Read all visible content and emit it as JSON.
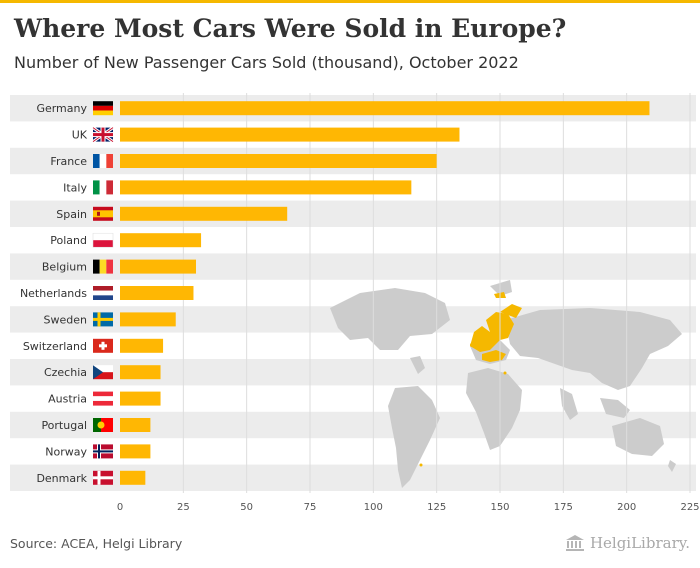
{
  "title": "Where Most Cars Were Sold in Europe?",
  "subtitle": "Number of New Passenger Cars Sold (thousand), October 2022",
  "source": "Source: ACEA, Helgi Library",
  "logo_text": "HelgiLibrary.",
  "colors": {
    "bar": "#ffb703",
    "band": "#ececec",
    "grid": "#dddddd",
    "text": "#333333",
    "map": "#cccccc",
    "map_highlight": "#f5b800"
  },
  "chart_data": {
    "type": "bar",
    "orientation": "horizontal",
    "categories": [
      "Germany",
      "UK",
      "France",
      "Italy",
      "Spain",
      "Poland",
      "Belgium",
      "Netherlands",
      "Sweden",
      "Switzerland",
      "Czechia",
      "Austria",
      "Portugal",
      "Norway",
      "Denmark"
    ],
    "values": [
      209,
      134,
      125,
      115,
      66,
      32,
      30,
      29,
      22,
      17,
      16,
      16,
      12,
      12,
      10
    ],
    "flags": [
      "germany-flag-icon",
      "uk-flag-icon",
      "france-flag-icon",
      "italy-flag-icon",
      "spain-flag-icon",
      "poland-flag-icon",
      "belgium-flag-icon",
      "netherlands-flag-icon",
      "sweden-flag-icon",
      "switzerland-flag-icon",
      "czechia-flag-icon",
      "austria-flag-icon",
      "portugal-flag-icon",
      "norway-flag-icon",
      "denmark-flag-icon"
    ],
    "xlim": [
      0,
      225
    ],
    "xticks": [
      0,
      25,
      50,
      75,
      100,
      125,
      150,
      175,
      200,
      225
    ],
    "grid": true,
    "title": "Where Most Cars Were Sold in Europe?",
    "subtitle": "Number of New Passenger Cars Sold (thousand), October 2022"
  }
}
